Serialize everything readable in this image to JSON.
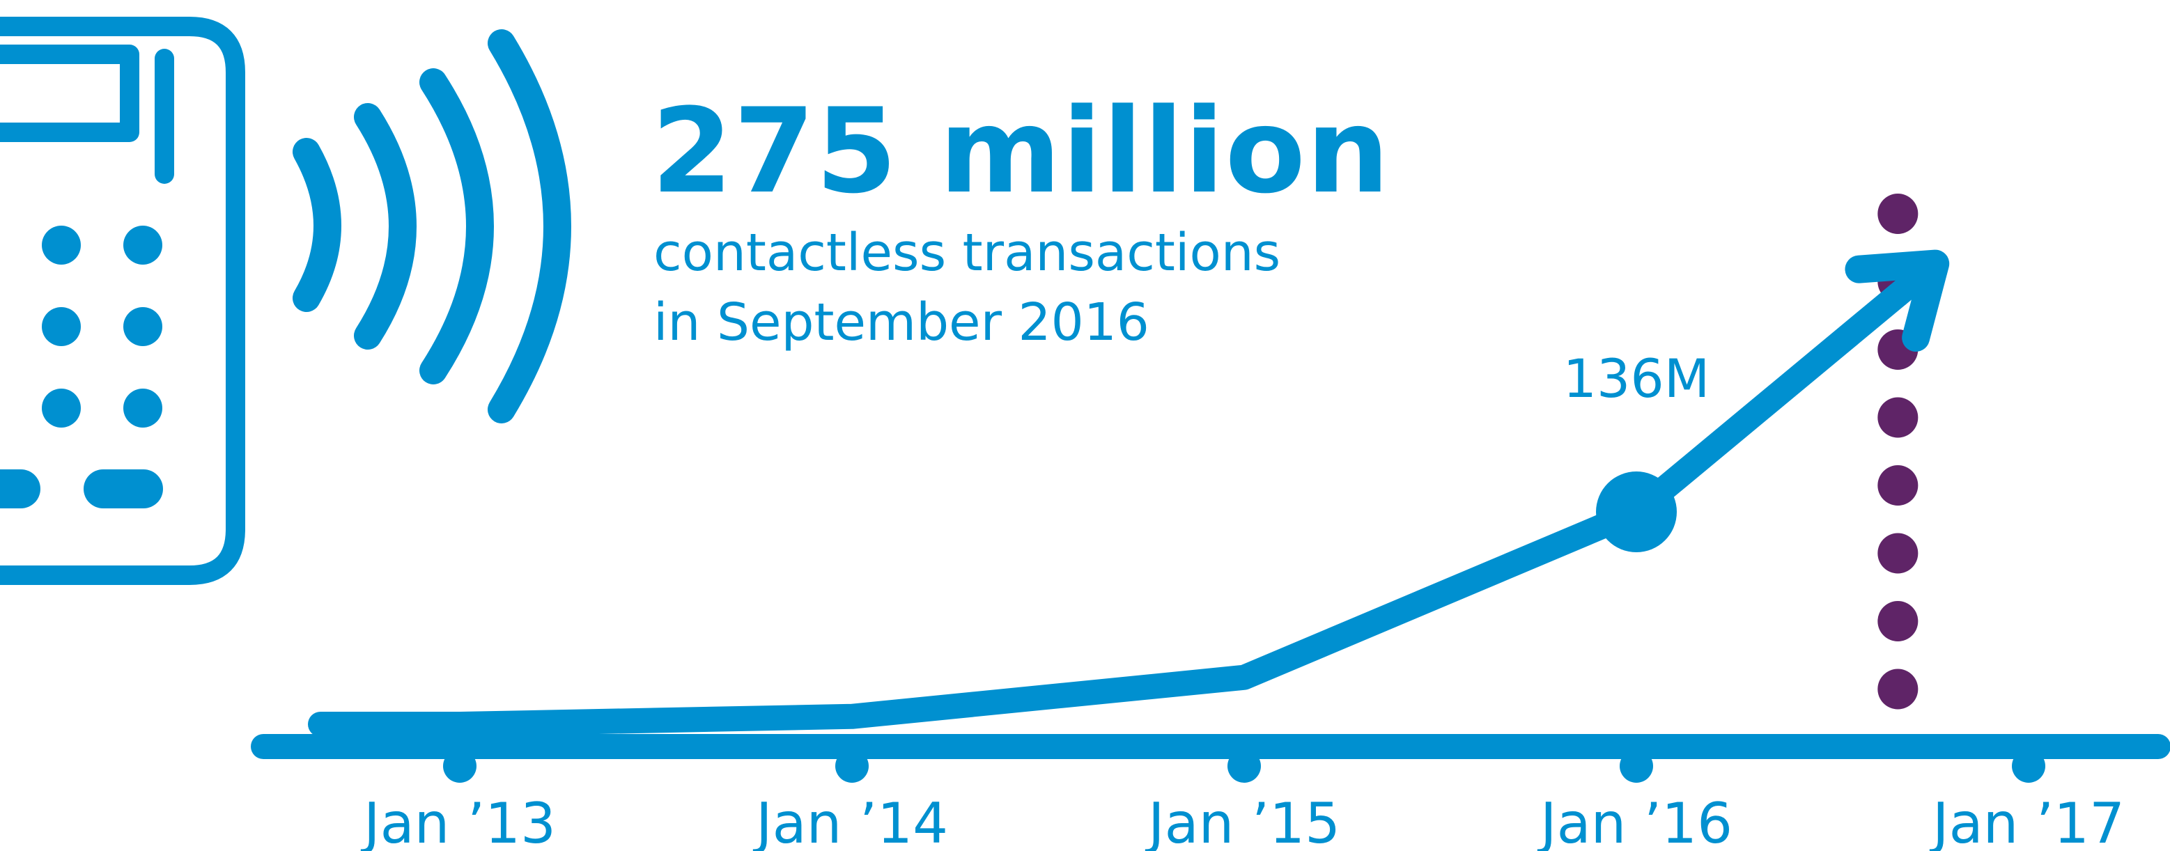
{
  "colors": {
    "brand": "#0090d0",
    "marker": "#5f2467",
    "background": "#ffffff"
  },
  "icons": {
    "terminal": "card-terminal-icon",
    "contactless": "contactless-waves-icon",
    "arrow": "arrow-head-icon"
  },
  "headline": {
    "value": "275 million",
    "line1": "contactless transactions",
    "line2": "in September 2016"
  },
  "chart_data": {
    "type": "line",
    "title": "",
    "xlabel": "",
    "ylabel": "",
    "x_ticks": [
      "Jan ’13",
      "Jan ’14",
      "Jan ’15",
      "Jan ’16",
      "Jan ’17"
    ],
    "series": [
      {
        "points": [
          {
            "x": "2013-01",
            "y": 0
          },
          {
            "x": "2014-01",
            "y": 5
          },
          {
            "x": "2015-01",
            "y": 30
          },
          {
            "x": "2016-01",
            "y": 136
          },
          {
            "x": "2016-09",
            "y": 275
          }
        ]
      }
    ],
    "annotations": [
      {
        "x": "2016-01",
        "label": "136M"
      }
    ],
    "marker_line": {
      "x": "2016-09",
      "style": "dotted"
    },
    "ylim": [
      0,
      330
    ],
    "grid": false,
    "legend": "none"
  }
}
